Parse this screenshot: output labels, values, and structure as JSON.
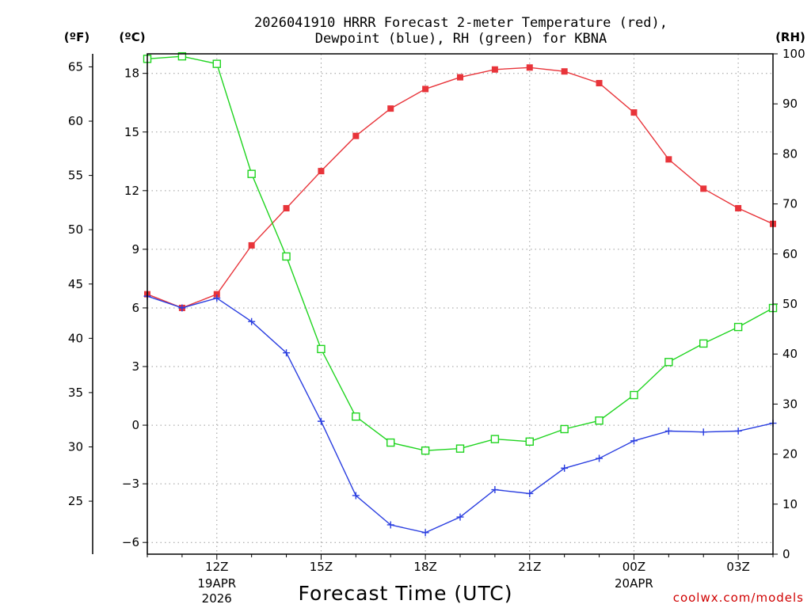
{
  "chart_data": {
    "type": "line",
    "title_line1": "2026041910 HRRR Forecast 2-meter Temperature (red),",
    "title_line2": "Dewpoint (blue), RH (green) for KBNA",
    "units": {
      "fahrenheit": "(ºF)",
      "celsius": "(ºC)",
      "rh": "(RH)"
    },
    "xlabel": "Forecast Time (UTC)",
    "credit": "coolwx.com/models",
    "x_hours": [
      10,
      11,
      12,
      13,
      14,
      15,
      16,
      17,
      18,
      19,
      20,
      21,
      22,
      23,
      24,
      25,
      26,
      27,
      28
    ],
    "xlim": [
      10,
      28
    ],
    "x_ticks": [
      {
        "hour": 12,
        "label": "12Z",
        "sub1": "19APR",
        "sub2": "2026"
      },
      {
        "hour": 15,
        "label": "15Z",
        "sub1": "",
        "sub2": ""
      },
      {
        "hour": 18,
        "label": "18Z",
        "sub1": "",
        "sub2": ""
      },
      {
        "hour": 21,
        "label": "21Z",
        "sub1": "",
        "sub2": ""
      },
      {
        "hour": 24,
        "label": "00Z",
        "sub1": "20APR",
        "sub2": ""
      },
      {
        "hour": 27,
        "label": "03Z",
        "sub1": "",
        "sub2": ""
      }
    ],
    "celsius_axis": {
      "ylim": [
        -6.6,
        19.0
      ],
      "ticks": [
        -6,
        -3,
        0,
        3,
        6,
        9,
        12,
        15,
        18
      ],
      "tick_labels": [
        "−6",
        "−3",
        "0",
        "3",
        "6",
        "9",
        "12",
        "15",
        "18"
      ]
    },
    "fahrenheit_axis": {
      "ticks": [
        25,
        30,
        35,
        40,
        45,
        50,
        55,
        60,
        65
      ],
      "tick_labels": [
        "25",
        "30",
        "35",
        "40",
        "45",
        "50",
        "55",
        "60",
        "65"
      ]
    },
    "rh_axis": {
      "ylim": [
        0,
        100
      ],
      "ticks": [
        0,
        10,
        20,
        30,
        40,
        50,
        60,
        70,
        80,
        90,
        100
      ],
      "tick_labels": [
        "0",
        "10",
        "20",
        "30",
        "40",
        "50",
        "60",
        "70",
        "80",
        "90",
        "100"
      ]
    },
    "series": [
      {
        "name": "Temperature",
        "axis": "celsius",
        "color": "#e8343a",
        "marker": "filled-square",
        "values": [
          6.7,
          6.0,
          6.7,
          9.2,
          11.1,
          13.0,
          14.8,
          16.2,
          17.2,
          17.8,
          18.2,
          18.3,
          18.1,
          17.5,
          16.0,
          13.6,
          12.1,
          11.1,
          10.3
        ]
      },
      {
        "name": "Dewpoint",
        "axis": "celsius",
        "color": "#2a3ee0",
        "marker": "plus",
        "values": [
          6.6,
          6.0,
          6.5,
          5.3,
          3.7,
          0.2,
          -3.6,
          -5.1,
          -5.5,
          -4.7,
          -3.3,
          -3.5,
          -2.2,
          -1.7,
          -0.8,
          -0.3,
          -0.35,
          -0.3,
          0.1
        ]
      },
      {
        "name": "RH",
        "axis": "rh",
        "color": "#1fd41f",
        "marker": "open-square",
        "values": [
          99,
          99.5,
          98,
          76,
          59.5,
          41,
          27.5,
          22.3,
          20.7,
          21.1,
          23,
          22.5,
          25,
          26.7,
          31.8,
          38.4,
          42.1,
          45.4,
          49.2
        ]
      }
    ]
  }
}
